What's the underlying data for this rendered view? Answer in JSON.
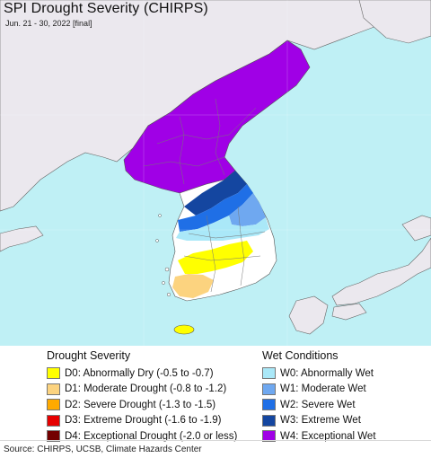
{
  "header": {
    "title": "SPI Drought Severity (CHIRPS)",
    "subtitle": "Jun. 21 - 30, 2022 [final]"
  },
  "map": {
    "ocean_color": "#bff0f5",
    "land_other_color": "#ebe8ee",
    "boundary_color": "#666666"
  },
  "legend_drought": {
    "heading": "Drought Severity",
    "items": [
      {
        "label": "D0: Abnormally Dry (-0.5 to -0.7)",
        "color": "#ffff00"
      },
      {
        "label": "D1: Moderate Drought (-0.8 to -1.2)",
        "color": "#fcd37f"
      },
      {
        "label": "D2: Severe Drought (-1.3 to -1.5)",
        "color": "#ffaa00"
      },
      {
        "label": "D3: Extreme Drought (-1.6 to -1.9)",
        "color": "#e60000"
      },
      {
        "label": "D4: Exceptional Drought (-2.0 or less)",
        "color": "#730000"
      }
    ]
  },
  "legend_wet": {
    "heading": "Wet Conditions",
    "items": [
      {
        "label": "W0: Abnormally Wet",
        "color": "#aae8f8"
      },
      {
        "label": "W1: Moderate Wet",
        "color": "#6fa8f0"
      },
      {
        "label": "W2: Severe Wet",
        "color": "#1f6fe6"
      },
      {
        "label": "W3: Extreme Wet",
        "color": "#1446a0"
      },
      {
        "label": "W4: Exceptional Wet",
        "color": "#a000e6"
      }
    ]
  },
  "footer": {
    "source": "Source: CHIRPS, UCSB, Climate Hazards Center"
  }
}
